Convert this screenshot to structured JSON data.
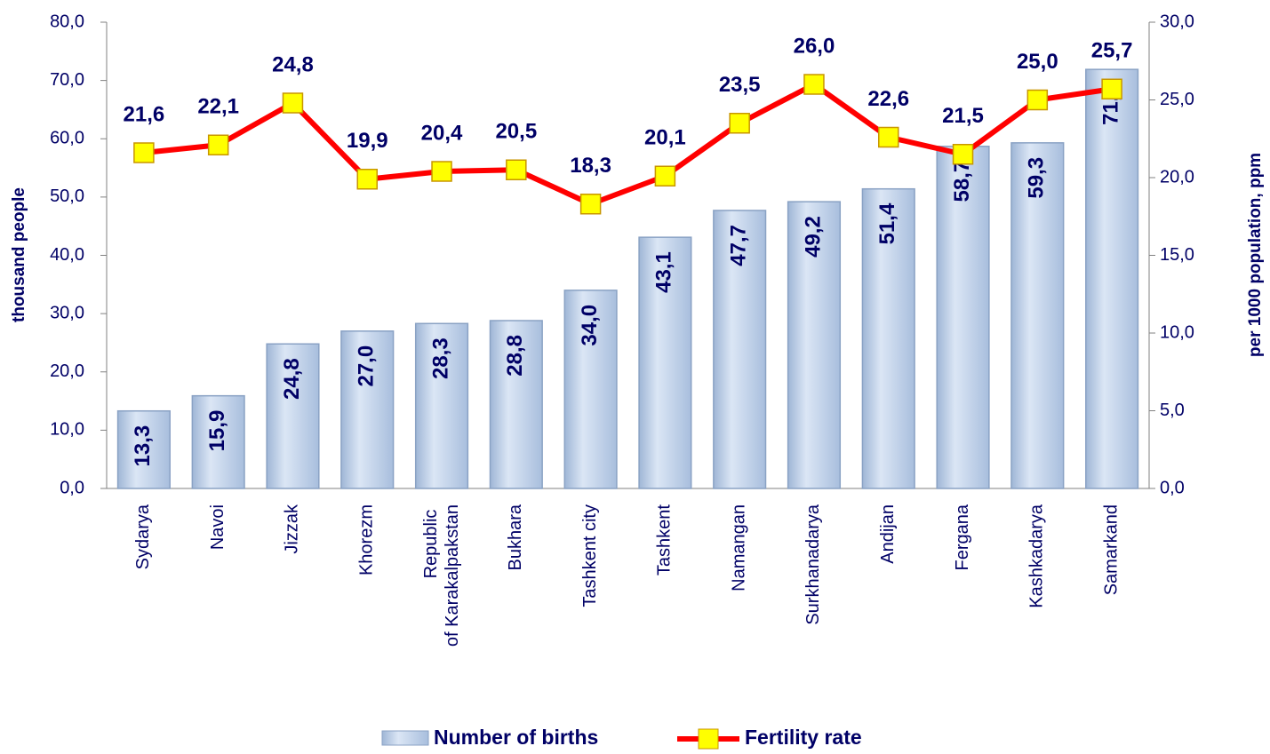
{
  "chart_data": {
    "type": "bar_line",
    "categories": [
      "Sydarya",
      "Navoi",
      "Jizzak",
      "Khorezm",
      "Republic of Karakalpakstan",
      "Bukhara",
      "Tashkent city",
      "Tashkent",
      "Namangan",
      "Surkhanadarya",
      "Andijan",
      "Fergana",
      "Kashkadarya",
      "Samarkand"
    ],
    "series": [
      {
        "name": "Number of births",
        "type": "bar",
        "color": "#c6d7ee",
        "values": [
          13.3,
          15.9,
          24.8,
          27.0,
          28.3,
          28.8,
          34.0,
          43.1,
          47.7,
          49.2,
          51.4,
          58.7,
          59.3,
          71.9
        ],
        "value_labels": [
          "13,3",
          "15,9",
          "24,8",
          "27,0",
          "28,3",
          "28,8",
          "34,0",
          "43,1",
          "47,7",
          "49,2",
          "51,4",
          "58,7",
          "59,3",
          "71,9"
        ]
      },
      {
        "name": "Fertility rate",
        "type": "line",
        "axis": "y2",
        "color": "#ff0000",
        "values": [
          21.6,
          22.1,
          24.8,
          19.9,
          20.4,
          20.5,
          18.3,
          20.1,
          23.5,
          26.0,
          22.6,
          21.5,
          25.0,
          25.7
        ],
        "value_labels": [
          "21,6",
          "22,1",
          "24,8",
          "19,9",
          "20,4",
          "20,5",
          "18,3",
          "20,1",
          "23,5",
          "26,0",
          "22,6",
          "21,5",
          "25,0",
          "25,7"
        ]
      }
    ],
    "ylabel": "thousand people",
    "y2label": "per 1000 population, ppm",
    "ylim": [
      0,
      80
    ],
    "yticks": [
      {
        "value": 0,
        "label": "0,0"
      },
      {
        "value": 10,
        "label": "10,0"
      },
      {
        "value": 20,
        "label": "20,0"
      },
      {
        "value": 30,
        "label": "30,0"
      },
      {
        "value": 40,
        "label": "40,0"
      },
      {
        "value": 50,
        "label": "50,0"
      },
      {
        "value": 60,
        "label": "60,0"
      },
      {
        "value": 70,
        "label": "70,0"
      },
      {
        "value": 80,
        "label": "80,0"
      }
    ],
    "y2lim": [
      0,
      30
    ],
    "y2ticks": [
      {
        "value": 0,
        "label": "0,0"
      },
      {
        "value": 5,
        "label": "5,0"
      },
      {
        "value": 10,
        "label": "10,0"
      },
      {
        "value": 15,
        "label": "15,0"
      },
      {
        "value": 20,
        "label": "20,0"
      },
      {
        "value": 25,
        "label": "25,0"
      },
      {
        "value": 30,
        "label": "30,0"
      }
    ],
    "legend": "bottom"
  }
}
